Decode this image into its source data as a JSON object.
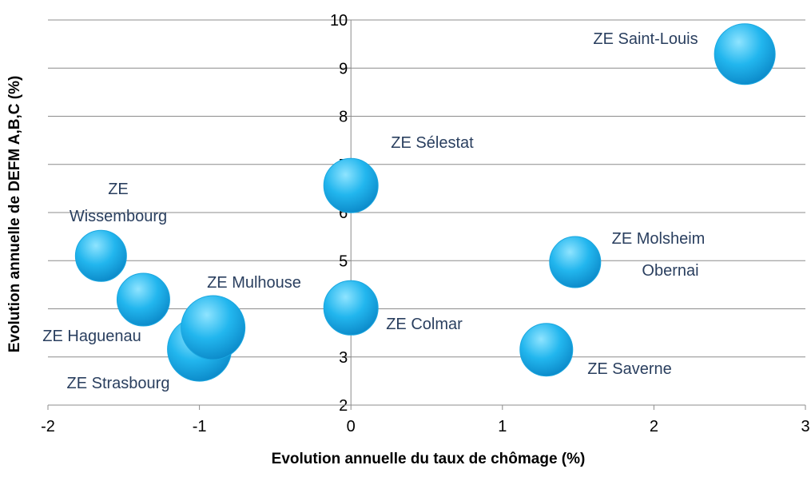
{
  "chart_data": {
    "type": "bubble",
    "x_label": "Evolution annuelle du taux de chômage (%)",
    "y_label": "Evolution annuelle de DEFM A,B,C (%)",
    "labels": [
      [
        "ZE Saint-Louis"
      ],
      [
        "ZE Sélestat"
      ],
      [
        "ZE",
        "Wissembourg"
      ],
      [
        "ZE Haguenau"
      ],
      [
        "ZE Strasbourg"
      ],
      [
        "ZE Mulhouse"
      ],
      [
        "ZE Colmar"
      ],
      [
        "ZE Molsheim",
        "Obernai"
      ],
      [
        "ZE Saverne"
      ]
    ],
    "x": [
      2.6,
      0,
      -1.65,
      -1.37,
      -1.0,
      -0.91,
      0,
      1.48,
      1.29
    ],
    "y": [
      9.29,
      6.56,
      5.1,
      4.19,
      3.16,
      3.61,
      4.02,
      4.97,
      3.15
    ],
    "size": [
      38,
      34,
      32,
      33,
      40,
      40,
      34,
      32,
      33
    ],
    "color": "#1aa7e0",
    "xlim": [
      -2,
      3
    ],
    "xticks": [
      -2,
      -1,
      0,
      1,
      2,
      3
    ],
    "ylim": [
      2,
      10
    ],
    "yticks": [
      2,
      3,
      4,
      5,
      6,
      7,
      8,
      9,
      10
    ],
    "grid": true
  }
}
